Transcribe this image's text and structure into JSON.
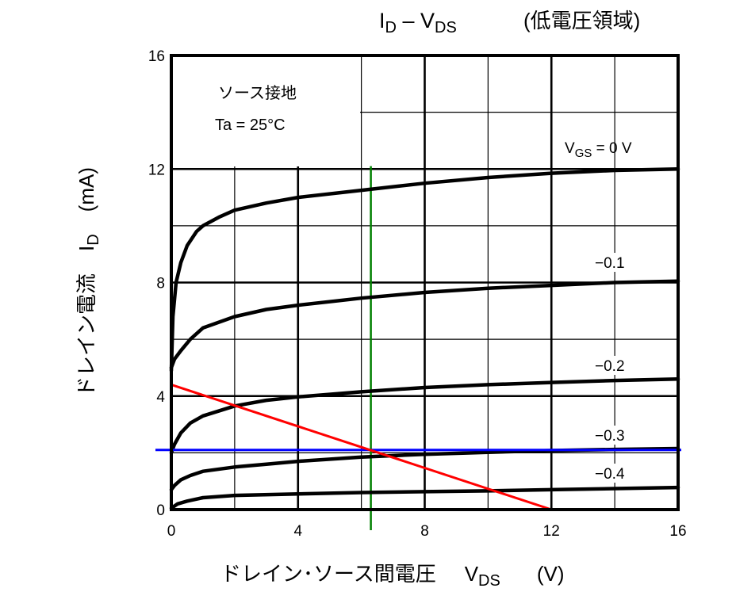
{
  "chart_data": {
    "type": "line",
    "title": {
      "main": "I",
      "main_sub": "D",
      "dash": " – ",
      "v": "V",
      "v_sub": "DS",
      "region": "(低電圧領域)"
    },
    "annotation_box": {
      "line1": "ソース接地",
      "line2": "Ta = 25°C"
    },
    "ylabel": {
      "text": "ドレイン電流",
      "symbol": "I",
      "symbol_sub": "D",
      "unit": "(mA)"
    },
    "xlabel": {
      "text": "ドレイン･ソース間電圧",
      "symbol": "V",
      "symbol_sub": "DS",
      "unit": "(V)"
    },
    "xlim": [
      0,
      16
    ],
    "ylim": [
      0,
      16
    ],
    "x_ticks": [
      "0",
      "4",
      "8",
      "12",
      "16"
    ],
    "y_ticks": [
      "0",
      "4",
      "8",
      "12",
      "16"
    ],
    "grid": true,
    "series": [
      {
        "name": "VGS = 0 V",
        "label": {
          "prefix": "V",
          "sub": "GS",
          "rest": " = 0 V"
        },
        "color": "#000000",
        "points": [
          [
            0,
            4.9
          ],
          [
            0.05,
            6.8
          ],
          [
            0.15,
            8.0
          ],
          [
            0.3,
            8.7
          ],
          [
            0.5,
            9.3
          ],
          [
            0.8,
            9.8
          ],
          [
            1,
            10.0
          ],
          [
            1.5,
            10.3
          ],
          [
            2,
            10.55
          ],
          [
            3,
            10.8
          ],
          [
            4,
            11.0
          ],
          [
            6,
            11.25
          ],
          [
            8,
            11.5
          ],
          [
            10,
            11.7
          ],
          [
            12,
            11.85
          ],
          [
            14,
            11.95
          ],
          [
            16,
            12.0
          ]
        ]
      },
      {
        "name": "−0.1",
        "label": {
          "prefix": "−0.1",
          "sub": "",
          "rest": ""
        },
        "color": "#000000",
        "points": [
          [
            0,
            5.0
          ],
          [
            0.1,
            5.3
          ],
          [
            0.3,
            5.6
          ],
          [
            0.6,
            6.0
          ],
          [
            1,
            6.4
          ],
          [
            2,
            6.8
          ],
          [
            3,
            7.05
          ],
          [
            4,
            7.2
          ],
          [
            6,
            7.45
          ],
          [
            8,
            7.65
          ],
          [
            10,
            7.8
          ],
          [
            12,
            7.9
          ],
          [
            14,
            8.0
          ],
          [
            16,
            8.05
          ]
        ]
      },
      {
        "name": "−0.2",
        "label": {
          "prefix": "−0.2",
          "sub": "",
          "rest": ""
        },
        "color": "#000000",
        "points": [
          [
            0,
            2.0
          ],
          [
            0.1,
            2.3
          ],
          [
            0.3,
            2.7
          ],
          [
            0.6,
            3.05
          ],
          [
            1,
            3.3
          ],
          [
            2,
            3.65
          ],
          [
            3,
            3.85
          ],
          [
            4,
            3.97
          ],
          [
            6,
            4.15
          ],
          [
            8,
            4.3
          ],
          [
            10,
            4.4
          ],
          [
            12,
            4.48
          ],
          [
            14,
            4.55
          ],
          [
            16,
            4.6
          ]
        ]
      },
      {
        "name": "−0.3",
        "label": {
          "prefix": "−0.3",
          "sub": "",
          "rest": ""
        },
        "color": "#000000",
        "points": [
          [
            0,
            0.7
          ],
          [
            0.1,
            0.85
          ],
          [
            0.3,
            1.05
          ],
          [
            0.6,
            1.2
          ],
          [
            1,
            1.35
          ],
          [
            2,
            1.5
          ],
          [
            3,
            1.6
          ],
          [
            4,
            1.7
          ],
          [
            6,
            1.85
          ],
          [
            8,
            1.95
          ],
          [
            10,
            2.02
          ],
          [
            12,
            2.08
          ],
          [
            14,
            2.12
          ],
          [
            16,
            2.15
          ]
        ]
      },
      {
        "name": "−0.4",
        "label": {
          "prefix": "−0.4",
          "sub": "",
          "rest": ""
        },
        "color": "#000000",
        "points": [
          [
            0,
            0.05
          ],
          [
            0.2,
            0.2
          ],
          [
            0.5,
            0.3
          ],
          [
            1,
            0.42
          ],
          [
            2,
            0.5
          ],
          [
            4,
            0.55
          ],
          [
            6,
            0.6
          ],
          [
            8,
            0.63
          ],
          [
            10,
            0.66
          ],
          [
            12,
            0.7
          ],
          [
            14,
            0.74
          ],
          [
            16,
            0.78
          ]
        ]
      }
    ],
    "overlays": {
      "load_line": {
        "color": "#ff0000",
        "points": [
          [
            0,
            4.4
          ],
          [
            12,
            0
          ]
        ]
      },
      "vertical_line": {
        "color": "#008000",
        "x": 6.3,
        "y_range": [
          0,
          12.1
        ]
      },
      "horizontal_line": {
        "color": "#0000ff",
        "y": 2.1
      }
    }
  }
}
